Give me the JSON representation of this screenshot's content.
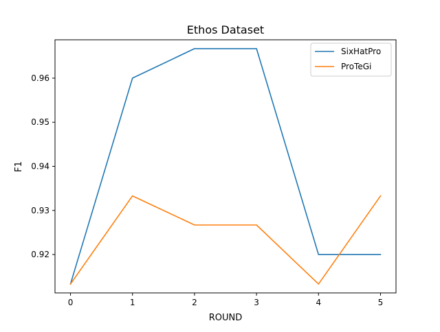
{
  "chart_data": {
    "type": "line",
    "title": "Ethos Dataset",
    "xlabel": "ROUND",
    "ylabel": "F1",
    "x": [
      0,
      1,
      2,
      3,
      4,
      5
    ],
    "xticks": [
      "0",
      "1",
      "2",
      "3",
      "4",
      "5"
    ],
    "yticks": [
      "0.92",
      "0.93",
      "0.94",
      "0.95",
      "0.96"
    ],
    "xlim": [
      -0.25,
      5.25
    ],
    "ylim": [
      0.9113,
      0.9687
    ],
    "grid": false,
    "legend_position": "top-right",
    "series": [
      {
        "name": "SixHatPro",
        "color": "#1f77b4",
        "values": [
          0.9133,
          0.96,
          0.9667,
          0.9667,
          0.92,
          0.92
        ]
      },
      {
        "name": "ProTeGi",
        "color": "#ff7f0e",
        "values": [
          0.9133,
          0.9333,
          0.9267,
          0.9267,
          0.9133,
          0.9333
        ]
      }
    ]
  }
}
